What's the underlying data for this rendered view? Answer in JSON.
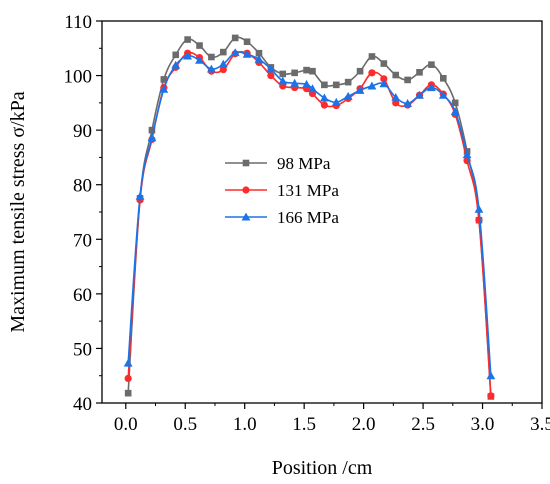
{
  "chart_data": {
    "type": "line",
    "title": "",
    "xlabel": "Position /cm",
    "ylabel": "Maximum tensile stress σ/kPa",
    "xlim": [
      -0.2,
      3.5
    ],
    "ylim": [
      40,
      110
    ],
    "xticks": [
      "0.0",
      "0.5",
      "1.0",
      "1.5",
      "2.0",
      "2.5",
      "3.0",
      "3.5"
    ],
    "yticks": [
      "40",
      "50",
      "60",
      "70",
      "80",
      "90",
      "100",
      "110"
    ],
    "grid": false,
    "legend_position": "center-left",
    "series": [
      {
        "name": "98 MPa",
        "color": "#6b6b6b",
        "marker": "square",
        "x": [
          0.02,
          0.12,
          0.22,
          0.32,
          0.42,
          0.52,
          0.62,
          0.72,
          0.82,
          0.92,
          1.02,
          1.12,
          1.22,
          1.32,
          1.42,
          1.52,
          1.57,
          1.67,
          1.77,
          1.87,
          1.97,
          2.07,
          2.17,
          2.27,
          2.37,
          2.47,
          2.57,
          2.67,
          2.77,
          2.87,
          2.97,
          3.07
        ],
        "y": [
          41.8,
          77.5,
          90.0,
          99.3,
          103.8,
          106.6,
          105.5,
          103.4,
          104.3,
          106.9,
          106.2,
          104.1,
          101.5,
          100.3,
          100.5,
          101.0,
          100.8,
          98.3,
          98.3,
          98.8,
          100.8,
          103.5,
          102.2,
          100.1,
          99.2,
          100.6,
          102.0,
          99.5,
          95.0,
          86.1,
          73.5,
          41.2
        ]
      },
      {
        "name": "131 MPa",
        "color": "#ff2b2b",
        "marker": "circle",
        "x": [
          0.02,
          0.12,
          0.22,
          0.32,
          0.42,
          0.52,
          0.62,
          0.72,
          0.82,
          0.92,
          1.02,
          1.12,
          1.22,
          1.32,
          1.42,
          1.52,
          1.57,
          1.67,
          1.77,
          1.87,
          1.97,
          2.07,
          2.17,
          2.27,
          2.37,
          2.47,
          2.57,
          2.67,
          2.77,
          2.87,
          2.97,
          3.07
        ],
        "y": [
          44.5,
          77.2,
          88.3,
          97.8,
          101.5,
          104.1,
          103.3,
          100.8,
          101.1,
          104.0,
          104.1,
          102.4,
          100.0,
          98.1,
          97.8,
          97.6,
          96.7,
          94.6,
          94.5,
          95.8,
          97.6,
          100.5,
          99.4,
          95.0,
          94.6,
          96.4,
          98.3,
          96.6,
          92.9,
          84.4,
          73.5,
          41.3
        ]
      },
      {
        "name": "166 MPa",
        "color": "#1a73e8",
        "marker": "triangle",
        "x": [
          0.02,
          0.12,
          0.22,
          0.32,
          0.42,
          0.52,
          0.62,
          0.72,
          0.82,
          0.92,
          1.02,
          1.12,
          1.22,
          1.32,
          1.42,
          1.52,
          1.57,
          1.67,
          1.77,
          1.87,
          1.97,
          2.07,
          2.17,
          2.27,
          2.37,
          2.47,
          2.57,
          2.67,
          2.77,
          2.87,
          2.97,
          3.07
        ],
        "y": [
          47.3,
          77.9,
          88.6,
          97.5,
          101.9,
          103.6,
          102.8,
          101.2,
          102.1,
          104.2,
          103.9,
          103.0,
          101.2,
          99.0,
          98.6,
          98.4,
          97.6,
          95.9,
          95.1,
          96.2,
          97.3,
          98.1,
          98.5,
          96.0,
          94.9,
          96.4,
          97.8,
          96.4,
          93.4,
          85.5,
          75.5,
          45.0
        ]
      }
    ]
  }
}
